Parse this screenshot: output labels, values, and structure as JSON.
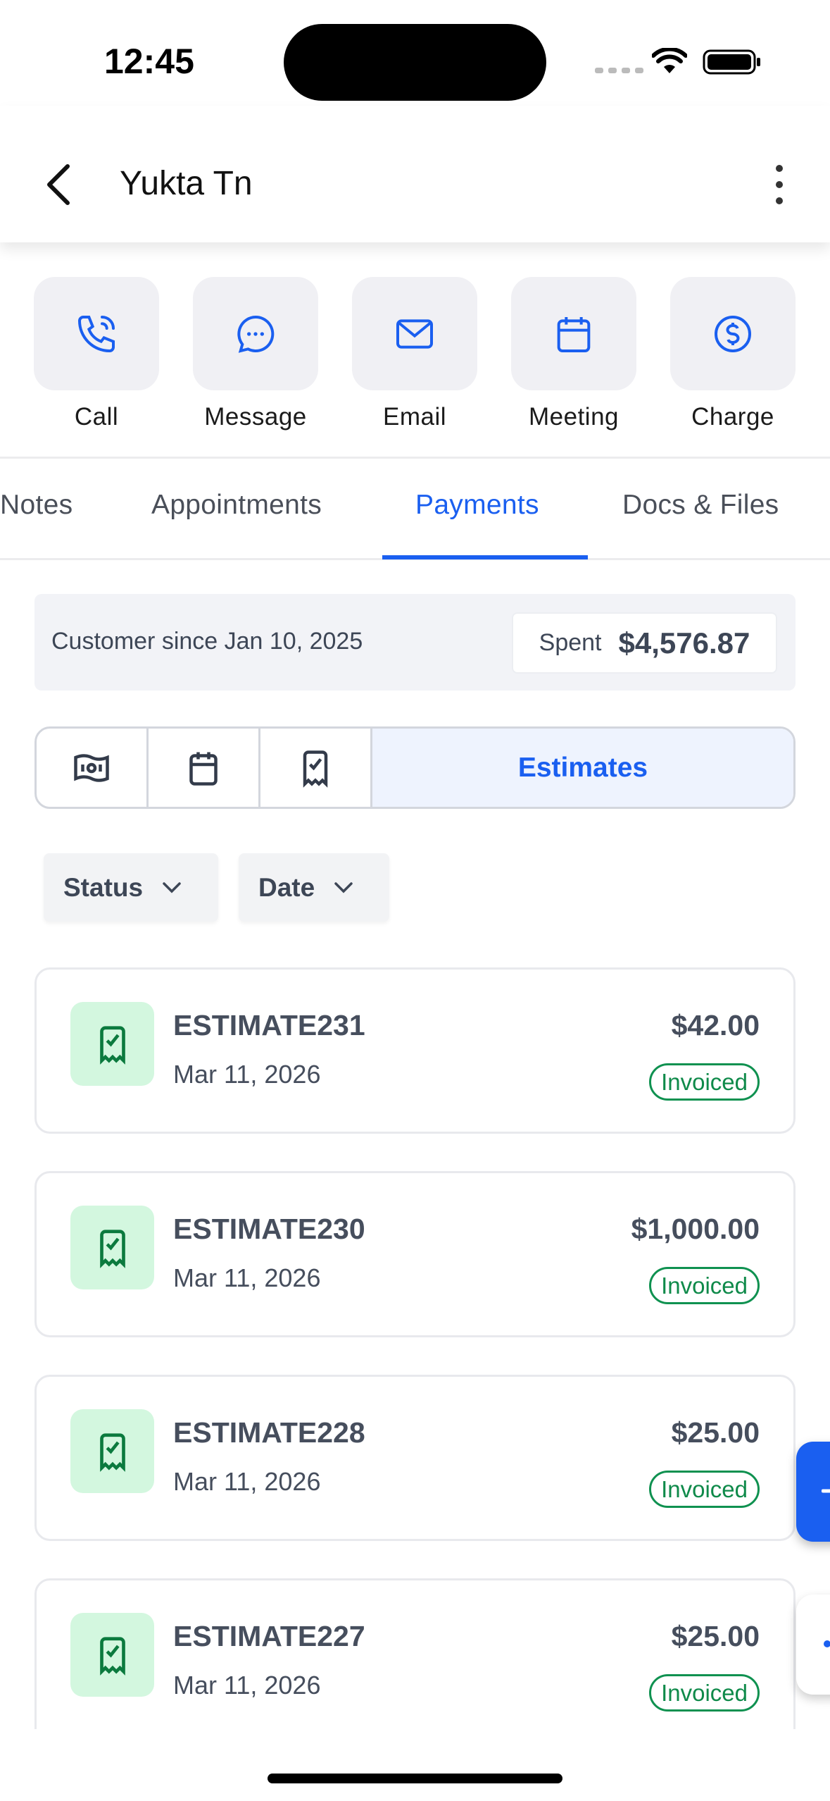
{
  "status_bar": {
    "time": "12:45"
  },
  "header": {
    "title": "Yukta Tn"
  },
  "actions": [
    {
      "label": "Call",
      "icon": "phone-icon"
    },
    {
      "label": "Message",
      "icon": "chat-bubble-icon"
    },
    {
      "label": "Email",
      "icon": "mail-icon"
    },
    {
      "label": "Meeting",
      "icon": "calendar-icon"
    },
    {
      "label": "Charge",
      "icon": "dollar-circle-icon"
    }
  ],
  "tabs": [
    {
      "label": "Notes"
    },
    {
      "label": "Appointments"
    },
    {
      "label": "Payments",
      "active": true
    },
    {
      "label": "Docs & Files"
    }
  ],
  "summary": {
    "customer_since": "Customer since Jan 10, 2025",
    "spent_label": "Spent",
    "spent_value": "$4,576.87"
  },
  "segments": {
    "active_label": "Estimates",
    "icons": [
      "money-bill-icon",
      "calendar-icon",
      "receipt-check-icon"
    ]
  },
  "filters": {
    "status": "Status",
    "date": "Date"
  },
  "estimates": [
    {
      "title": "ESTIMATE231",
      "date": "Mar 11, 2026",
      "amount": "$42.00",
      "status": "Invoiced"
    },
    {
      "title": "ESTIMATE230",
      "date": "Mar 11, 2026",
      "amount": "$1,000.00",
      "status": "Invoiced"
    },
    {
      "title": "ESTIMATE228",
      "date": "Mar 11, 2026",
      "amount": "$25.00",
      "status": "Invoiced"
    },
    {
      "title": "ESTIMATE227",
      "date": "Mar 11, 2026",
      "amount": "$25.00",
      "status": "Invoiced"
    }
  ],
  "colors": {
    "accent": "#1a5ff0",
    "status_green": "#0f9150",
    "icon_bg_green": "#d3f7df"
  }
}
